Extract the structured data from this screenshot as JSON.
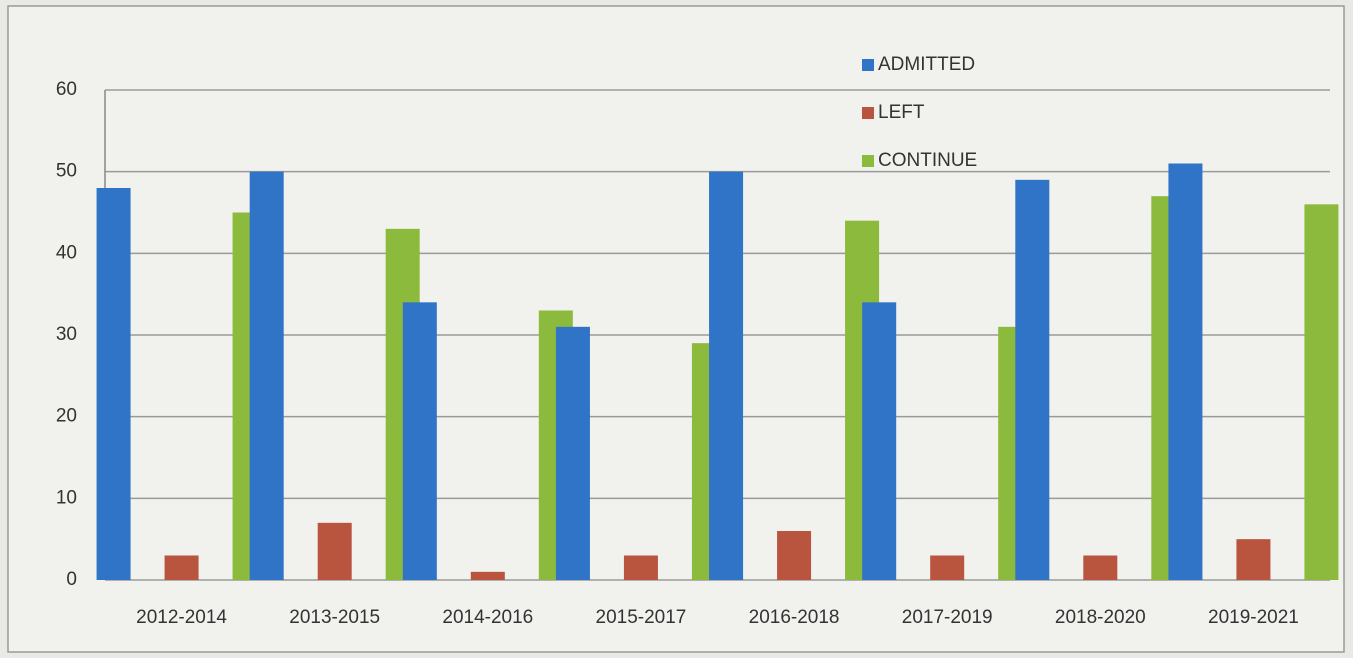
{
  "chart_data": {
    "type": "bar",
    "categories": [
      "2012-2014",
      "2013-2015",
      "2014-2016",
      "2015-2017",
      "2016-2018",
      "2017-2019",
      "2018-2020",
      "2019-2021"
    ],
    "series": [
      {
        "name": "ADMITTED",
        "color": "#2f74c6",
        "values": [
          48,
          50,
          34,
          31,
          50,
          34,
          49,
          51
        ]
      },
      {
        "name": "LEFT",
        "color": "#b9543f",
        "values": [
          3,
          7,
          1,
          3,
          6,
          3,
          3,
          5
        ]
      },
      {
        "name": "CONTINUE",
        "color": "#8cba3c",
        "values": [
          45,
          43,
          33,
          29,
          44,
          31,
          47,
          46
        ]
      }
    ],
    "ylim": [
      0,
      60
    ],
    "yticks": [
      0,
      10,
      20,
      30,
      40,
      50,
      60
    ],
    "grid": true,
    "legend": "top-right"
  }
}
